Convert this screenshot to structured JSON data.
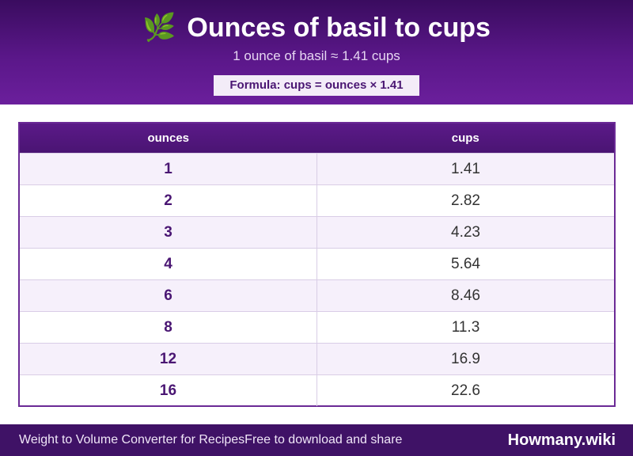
{
  "header": {
    "icon": "🌿",
    "title": "Ounces of basil to cups",
    "subtitle": "1 ounce of basil ≈ 1.41 cups",
    "formula": "Formula: cups = ounces × 1.41"
  },
  "table": {
    "columns": [
      "ounces",
      "cups"
    ],
    "rows": [
      {
        "ounces": "1",
        "cups": "1.41"
      },
      {
        "ounces": "2",
        "cups": "2.82"
      },
      {
        "ounces": "3",
        "cups": "4.23"
      },
      {
        "ounces": "4",
        "cups": "5.64"
      },
      {
        "ounces": "6",
        "cups": "8.46"
      },
      {
        "ounces": "8",
        "cups": "11.3"
      },
      {
        "ounces": "12",
        "cups": "16.9"
      },
      {
        "ounces": "16",
        "cups": "22.6"
      }
    ]
  },
  "footer": {
    "left_text": "Weight to Volume Converter for Recipes",
    "middle_text": "Free to download and share",
    "brand": "Howmany.wiki"
  }
}
